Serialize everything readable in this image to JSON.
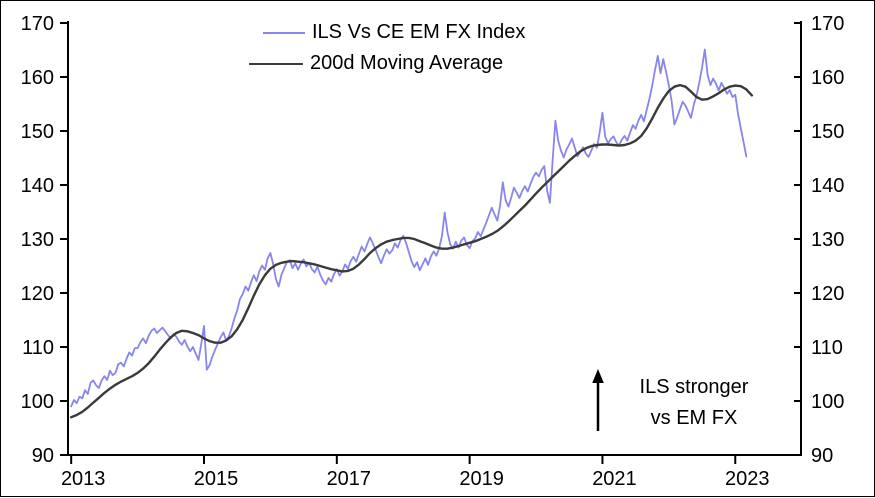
{
  "chart_data": {
    "type": "line",
    "title": "",
    "grid": false,
    "legend_position": "top-center",
    "legend": [
      {
        "label": "ILS Vs CE EM FX Index",
        "color": "#8885ec"
      },
      {
        "label": "200d Moving Average",
        "color": "#3a3a3a"
      }
    ],
    "x_axis": {
      "min": 2012.952,
      "max": 2023.99,
      "ticks": [
        2013,
        2015,
        2017,
        2019,
        2021,
        2023
      ]
    },
    "y_axis": {
      "min": 90,
      "max": 170,
      "ticks": [
        90,
        100,
        110,
        120,
        130,
        140,
        150,
        160,
        170
      ]
    },
    "annotation": {
      "line1": "ILS stronger",
      "line2": "vs EM FX",
      "arrow": "up"
    },
    "series": [
      {
        "name": "ILS Vs CE EM FX Index",
        "color": "#8885ec",
        "stroke_width": 1.8,
        "x_start": 2013.0,
        "x_step": 0.0416667,
        "values": [
          99.0,
          100.2,
          99.6,
          100.8,
          100.5,
          102.0,
          101.3,
          103.4,
          103.8,
          102.9,
          102.4,
          103.8,
          104.6,
          103.9,
          105.6,
          104.8,
          105.2,
          106.8,
          107.1,
          106.4,
          107.8,
          109.0,
          108.4,
          109.8,
          109.8,
          110.9,
          111.6,
          110.7,
          112.1,
          113.0,
          113.4,
          112.6,
          113.1,
          113.6,
          112.9,
          112.2,
          111.6,
          112.4,
          111.9,
          111.0,
          110.4,
          111.3,
          110.1,
          109.2,
          110.0,
          108.8,
          107.6,
          110.5,
          113.9,
          105.8,
          106.6,
          108.2,
          109.5,
          110.6,
          111.8,
          112.7,
          111.2,
          112.0,
          113.5,
          115.3,
          116.8,
          118.9,
          119.8,
          121.2,
          120.4,
          122.0,
          123.3,
          122.2,
          124.0,
          125.1,
          124.3,
          126.4,
          127.4,
          125.3,
          122.6,
          121.2,
          123.4,
          124.6,
          125.8,
          126.1,
          124.6,
          125.5,
          124.3,
          125.4,
          126.2,
          124.9,
          125.6,
          124.4,
          123.8,
          124.9,
          123.4,
          122.3,
          121.6,
          122.8,
          122.1,
          123.5,
          124.4,
          123.2,
          124.0,
          125.3,
          124.5,
          125.9,
          126.7,
          125.8,
          127.3,
          128.6,
          127.7,
          129.1,
          130.3,
          129.2,
          128.0,
          126.7,
          125.5,
          126.9,
          128.1,
          127.3,
          127.9,
          129.2,
          128.4,
          129.8,
          130.6,
          129.3,
          127.6,
          125.9,
          124.8,
          125.7,
          124.2,
          125.3,
          126.4,
          125.2,
          126.8,
          127.7,
          126.9,
          128.3,
          130.6,
          134.9,
          131.2,
          129.0,
          128.2,
          129.5,
          128.4,
          129.7,
          130.3,
          128.9,
          128.3,
          129.6,
          130.1,
          131.3,
          130.5,
          131.8,
          133.0,
          134.4,
          135.8,
          134.6,
          133.4,
          136.2,
          140.5,
          137.2,
          136.0,
          137.6,
          139.5,
          138.6,
          137.6,
          138.9,
          139.8,
          138.8,
          140.2,
          141.5,
          142.3,
          141.6,
          142.8,
          143.5,
          139.0,
          136.7,
          144.5,
          151.9,
          148.2,
          146.4,
          145.1,
          146.6,
          147.5,
          148.6,
          146.9,
          145.3,
          146.2,
          147.0,
          145.8,
          145.2,
          146.4,
          147.6,
          146.9,
          149.8,
          153.4,
          149.0,
          147.7,
          148.5,
          149.0,
          147.9,
          147.3,
          148.4,
          149.1,
          148.2,
          149.7,
          151.1,
          150.4,
          151.9,
          153.0,
          151.8,
          153.9,
          156.0,
          158.4,
          161.3,
          163.9,
          160.7,
          163.3,
          160.9,
          158.4,
          155.6,
          151.2,
          152.5,
          154.0,
          155.4,
          154.7,
          153.6,
          152.4,
          154.9,
          156.5,
          159.0,
          161.8,
          165.1,
          160.4,
          158.5,
          159.7,
          158.8,
          157.5,
          158.9,
          158.0,
          156.9,
          157.6,
          156.3,
          156.7,
          153.2,
          150.5,
          147.9,
          145.3
        ]
      },
      {
        "name": "200d Moving Average",
        "color": "#3a3a3a",
        "stroke_width": 2.4,
        "x_start": 2013.0,
        "x_step": 0.0833333,
        "values": [
          97.0,
          97.4,
          98.0,
          98.8,
          99.7,
          100.6,
          101.5,
          102.3,
          103.0,
          103.6,
          104.1,
          104.6,
          105.2,
          106.0,
          107.0,
          108.2,
          109.5,
          110.7,
          111.8,
          112.6,
          113.0,
          112.9,
          112.6,
          112.2,
          111.6,
          111.1,
          110.8,
          110.8,
          111.2,
          112.0,
          113.3,
          115.0,
          117.2,
          119.5,
          121.6,
          123.3,
          124.5,
          125.2,
          125.6,
          125.8,
          125.9,
          125.8,
          125.7,
          125.5,
          125.3,
          125.0,
          124.7,
          124.4,
          124.2,
          124.0,
          124.1,
          124.5,
          125.3,
          126.3,
          127.4,
          128.3,
          129.0,
          129.5,
          129.8,
          130.0,
          130.2,
          130.2,
          130.0,
          129.6,
          129.2,
          128.8,
          128.4,
          128.2,
          128.2,
          128.4,
          128.7,
          129.0,
          129.3,
          129.6,
          130.0,
          130.4,
          130.9,
          131.5,
          132.3,
          133.2,
          134.2,
          135.2,
          136.2,
          137.3,
          138.4,
          139.5,
          140.5,
          141.5,
          142.5,
          143.5,
          144.5,
          145.4,
          146.2,
          146.8,
          147.2,
          147.4,
          147.5,
          147.5,
          147.4,
          147.3,
          147.4,
          147.7,
          148.2,
          149.1,
          150.5,
          152.3,
          154.3,
          156.0,
          157.4,
          158.2,
          158.5,
          158.2,
          157.3,
          156.3,
          155.8,
          155.9,
          156.4,
          157.0,
          157.7,
          158.2,
          158.4,
          158.3,
          157.7,
          156.6
        ]
      }
    ]
  }
}
